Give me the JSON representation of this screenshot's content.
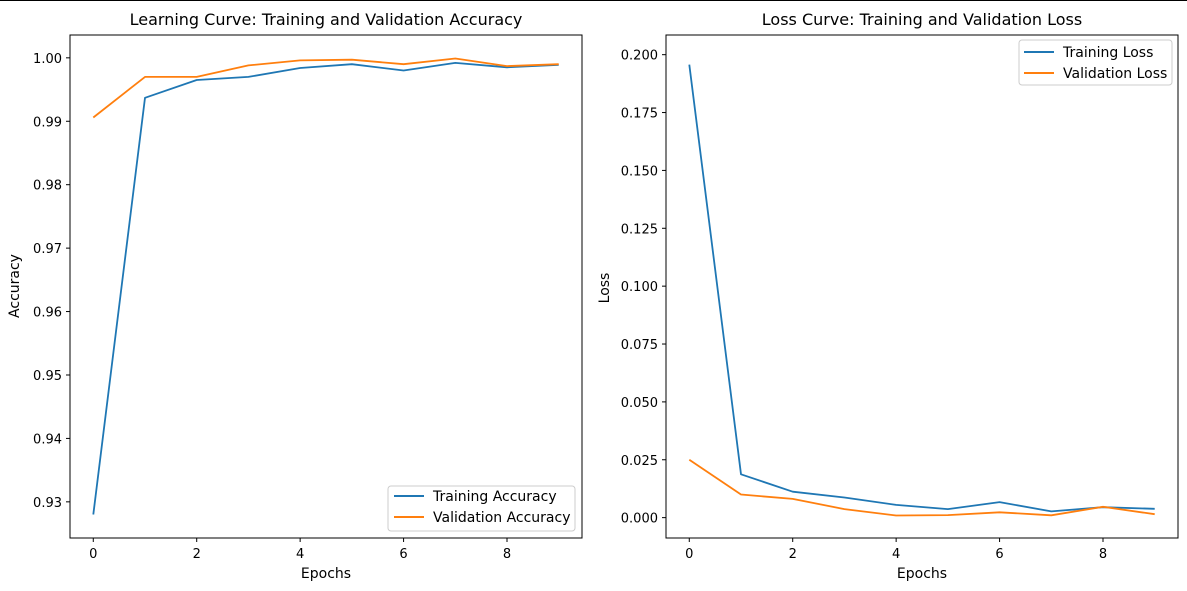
{
  "colors": {
    "training": "#1f77b4",
    "validation": "#ff7f0e",
    "axes": "#000000",
    "background": "#ffffff"
  },
  "chart_data": [
    {
      "type": "line",
      "title": "Learning Curve: Training and Validation Accuracy",
      "xlabel": "Epochs",
      "ylabel": "Accuracy",
      "x": [
        0,
        1,
        2,
        3,
        4,
        5,
        6,
        7,
        8,
        9
      ],
      "xlim": [
        -0.45,
        9.45
      ],
      "ylim": [
        0.9243,
        1.0036
      ],
      "xticks": [
        0,
        2,
        4,
        6,
        8
      ],
      "yticks": [
        0.93,
        0.94,
        0.95,
        0.96,
        0.97,
        0.98,
        0.99,
        1.0
      ],
      "ytick_labels": [
        "0.93",
        "0.94",
        "0.95",
        "0.96",
        "0.97",
        "0.98",
        "0.99",
        "1.00"
      ],
      "grid": false,
      "legend_position": "lower-right",
      "series": [
        {
          "name": "Training Accuracy",
          "color": "#1f77b4",
          "values": [
            0.928,
            0.9937,
            0.9965,
            0.997,
            0.9984,
            0.999,
            0.998,
            0.9992,
            0.9985,
            0.9989
          ]
        },
        {
          "name": "Validation Accuracy",
          "color": "#ff7f0e",
          "values": [
            0.9906,
            0.997,
            0.997,
            0.9988,
            0.9996,
            0.9997,
            0.999,
            0.9999,
            0.9987,
            0.999
          ]
        }
      ]
    },
    {
      "type": "line",
      "title": "Loss Curve: Training and Validation Loss",
      "xlabel": "Epochs",
      "ylabel": "Loss",
      "x": [
        0,
        1,
        2,
        3,
        4,
        5,
        6,
        7,
        8,
        9
      ],
      "xlim": [
        -0.45,
        9.45
      ],
      "ylim": [
        -0.0088,
        0.2085
      ],
      "xticks": [
        0,
        2,
        4,
        6,
        8
      ],
      "yticks": [
        0.0,
        0.025,
        0.05,
        0.075,
        0.1,
        0.125,
        0.15,
        0.175,
        0.2
      ],
      "ytick_labels": [
        "0.000",
        "0.025",
        "0.050",
        "0.075",
        "0.100",
        "0.125",
        "0.150",
        "0.175",
        "0.200"
      ],
      "grid": false,
      "legend_position": "upper-right",
      "series": [
        {
          "name": "Training Loss",
          "color": "#1f77b4",
          "values": [
            0.1957,
            0.0187,
            0.0112,
            0.0087,
            0.0055,
            0.0037,
            0.0067,
            0.0027,
            0.0045,
            0.0038
          ]
        },
        {
          "name": "Validation Loss",
          "color": "#ff7f0e",
          "values": [
            0.025,
            0.01,
            0.0081,
            0.0037,
            0.0009,
            0.0011,
            0.0023,
            0.001,
            0.0047,
            0.0015
          ]
        }
      ]
    }
  ]
}
